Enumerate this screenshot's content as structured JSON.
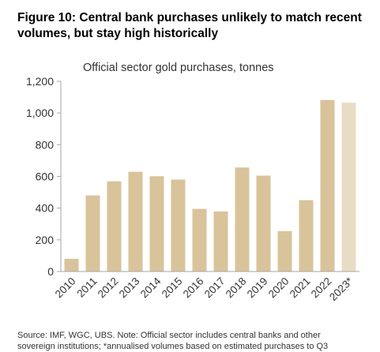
{
  "header": {
    "title": "Figure 10: Central bank purchases unlikely to match recent volumes, but stay high historically"
  },
  "footer": {
    "line1": "Source: IMF, WGC, UBS. Note: Official sector includes central banks and other",
    "line2": "sovereign institutions; *annualised volumes based on estimated purchases to Q3"
  },
  "chart_data": {
    "type": "bar",
    "title": "Official sector gold purchases, tonnes",
    "categories": [
      "2010",
      "2011",
      "2012",
      "2013",
      "2014",
      "2015",
      "2016",
      "2017",
      "2018",
      "2019",
      "2020",
      "2021",
      "2022",
      "2023*"
    ],
    "values": [
      80,
      480,
      569,
      629,
      601,
      580,
      395,
      379,
      656,
      605,
      255,
      450,
      1082,
      1065
    ],
    "ylim": [
      0,
      1200
    ],
    "yticks": [
      0,
      200,
      400,
      600,
      800,
      1000,
      1200
    ],
    "ytick_labels": [
      "0",
      "200",
      "400",
      "600",
      "800",
      "1,000",
      "1,200"
    ],
    "grid": false,
    "colors": {
      "bar": "#d9c39a",
      "estimate_bar": "#e8dcc6",
      "axis": "#a6a6a6"
    }
  }
}
